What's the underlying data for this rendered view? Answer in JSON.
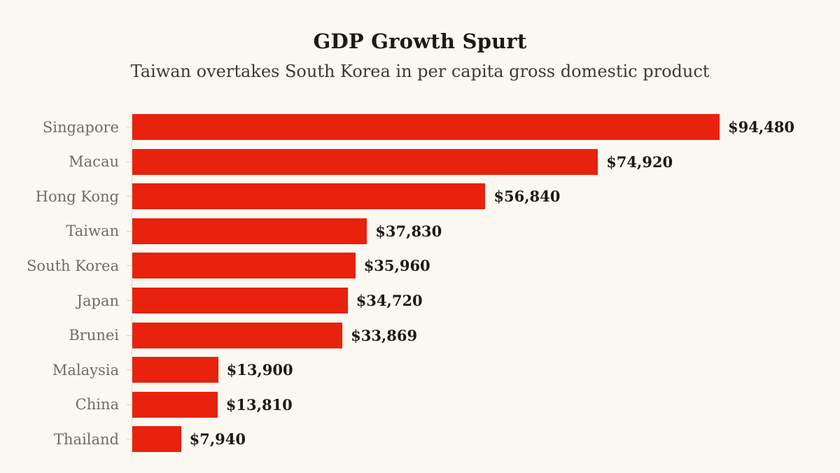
{
  "page": {
    "background_color": "#fbf8f1"
  },
  "header": {
    "title": "GDP Growth Spurt",
    "subtitle": "Taiwan overtakes South Korea in per capita gross domestic product"
  },
  "chart_data": {
    "type": "bar",
    "orientation": "horizontal",
    "title": "GDP Growth Spurt",
    "subtitle": "Taiwan overtakes South Korea in per capita gross domestic product",
    "categories": [
      "Singapore",
      "Macau",
      "Hong Kong",
      "Taiwan",
      "South Korea",
      "Japan",
      "Brunei",
      "Malaysia",
      "China",
      "Thailand"
    ],
    "values": [
      94480,
      74920,
      56840,
      37830,
      35960,
      34720,
      33869,
      13900,
      13810,
      7940
    ],
    "value_labels": [
      "$94,480",
      "$74,920",
      "$56,840",
      "$37,830",
      "$35,960",
      "$34,720",
      "$33,869",
      "$13,900",
      "$13,810",
      "$7,940"
    ],
    "xlabel": "",
    "ylabel": "",
    "xlim": [
      0,
      94480
    ],
    "grid": false,
    "legend": "none",
    "bar_color": "#e8220d",
    "label_color": "#6e6c66",
    "value_label_color": "#1b1a17",
    "value_label_position": "outside-end"
  }
}
